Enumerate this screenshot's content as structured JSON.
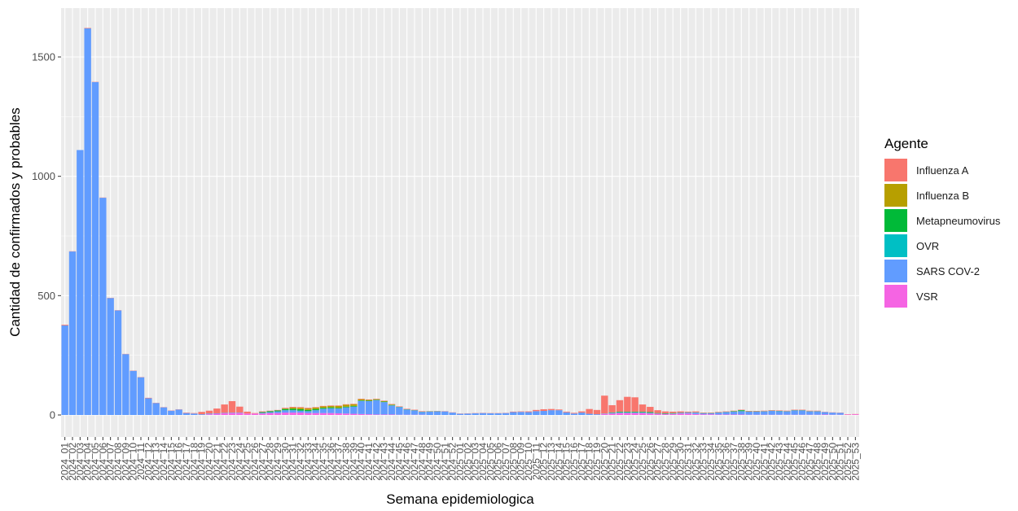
{
  "chart_data": {
    "type": "bar",
    "stacked": true,
    "xlabel": "Semana epidemiologica",
    "ylabel": "Cantidad de confirmados y probables",
    "ylim": [
      0,
      1720
    ],
    "yticks": [
      0,
      500,
      1000,
      1500
    ],
    "legend": {
      "title": "Agente",
      "placement": "right",
      "entries": [
        {
          "name": "Influenza A",
          "color": "#F8766D"
        },
        {
          "name": "Influenza B",
          "color": "#B79F00"
        },
        {
          "name": "Metapneumovirus",
          "color": "#00BA38"
        },
        {
          "name": "OVR",
          "color": "#00BFC4"
        },
        {
          "name": "SARS COV-2",
          "color": "#619CFF"
        },
        {
          "name": "VSR",
          "color": "#F564E3"
        }
      ]
    },
    "background": "#EBEBEB",
    "grid": true,
    "categories": [
      "2024_01",
      "2024_02",
      "2024_03",
      "2024_04",
      "2024_05",
      "2024_06",
      "2024_07",
      "2024_08",
      "2024_09",
      "2024_10",
      "2024_11",
      "2024_12",
      "2024_13",
      "2024_14",
      "2024_15",
      "2024_16",
      "2024_17",
      "2024_18",
      "2024_19",
      "2024_20",
      "2024_21",
      "2024_22",
      "2024_23",
      "2024_24",
      "2024_25",
      "2024_26",
      "2024_27",
      "2024_28",
      "2024_29",
      "2024_30",
      "2024_31",
      "2024_32",
      "2024_33",
      "2024_34",
      "2024_35",
      "2024_36",
      "2024_37",
      "2024_38",
      "2024_39",
      "2024_40",
      "2024_41",
      "2024_42",
      "2024_43",
      "2024_44",
      "2024_45",
      "2024_46",
      "2024_47",
      "2024_48",
      "2024_49",
      "2024_50",
      "2024_51",
      "2024_52",
      "2025_01",
      "2025_02",
      "2025_03",
      "2025_04",
      "2025_05",
      "2025_06",
      "2025_07",
      "2025_08",
      "2025_09",
      "2025_10",
      "2025_11",
      "2025_12",
      "2025_13",
      "2025_14",
      "2025_15",
      "2025_16",
      "2025_17",
      "2025_18",
      "2025_19",
      "2025_20",
      "2025_21",
      "2025_22",
      "2025_23",
      "2025_24",
      "2025_25",
      "2025_26",
      "2025_27",
      "2025_28",
      "2025_29",
      "2025_30",
      "2025_31",
      "2025_32",
      "2025_33",
      "2025_34",
      "2025_35",
      "2025_36",
      "2025_37",
      "2025_38",
      "2025_39",
      "2025_40",
      "2025_41",
      "2025_42",
      "2025_43",
      "2025_44",
      "2025_45",
      "2025_46",
      "2025_47",
      "2025_48",
      "2025_49",
      "2025_50",
      "2025_51",
      "2025_52",
      "2025_53"
    ],
    "series": [
      {
        "name": "Influenza A",
        "values": [
          3,
          1,
          0,
          2,
          1,
          1,
          1,
          1,
          1,
          1,
          1,
          2,
          1,
          1,
          1,
          1,
          2,
          2,
          10,
          12,
          20,
          35,
          48,
          25,
          8,
          2,
          3,
          2,
          2,
          3,
          3,
          3,
          3,
          2,
          2,
          2,
          2,
          2,
          2,
          2,
          2,
          2,
          2,
          2,
          2,
          2,
          2,
          2,
          1,
          1,
          1,
          1,
          1,
          1,
          1,
          1,
          1,
          1,
          1,
          2,
          2,
          3,
          5,
          7,
          5,
          3,
          3,
          3,
          5,
          20,
          18,
          75,
          30,
          48,
          62,
          60,
          30,
          22,
          12,
          8,
          6,
          5,
          3,
          4,
          2,
          2,
          2,
          2,
          2,
          2,
          2,
          2,
          2,
          2,
          2,
          2,
          2,
          2,
          2,
          2,
          1,
          1,
          1,
          1,
          1
        ]
      },
      {
        "name": "Influenza B",
        "values": [
          0,
          0,
          0,
          0,
          0,
          0,
          0,
          0,
          0,
          0,
          0,
          0,
          0,
          0,
          0,
          0,
          0,
          0,
          0,
          0,
          0,
          0,
          0,
          0,
          0,
          0,
          0,
          0,
          0,
          2,
          5,
          6,
          6,
          6,
          6,
          6,
          8,
          8,
          7,
          5,
          3,
          2,
          2,
          2,
          0,
          0,
          0,
          0,
          0,
          0,
          0,
          0,
          0,
          0,
          0,
          0,
          0,
          0,
          0,
          0,
          0,
          0,
          0,
          0,
          0,
          0,
          0,
          0,
          0,
          0,
          0,
          0,
          0,
          0,
          0,
          0,
          0,
          0,
          0,
          0,
          0,
          0,
          0,
          0,
          0,
          0,
          0,
          0,
          0,
          0,
          0,
          0,
          0,
          0,
          0,
          0,
          0,
          0,
          0,
          0,
          0,
          0,
          0,
          0,
          0
        ]
      },
      {
        "name": "Metapneumovirus",
        "values": [
          0,
          0,
          0,
          0,
          0,
          0,
          0,
          0,
          0,
          0,
          0,
          0,
          0,
          0,
          0,
          0,
          0,
          0,
          0,
          0,
          0,
          0,
          0,
          0,
          0,
          0,
          3,
          4,
          4,
          5,
          6,
          6,
          5,
          5,
          4,
          4,
          3,
          3,
          3,
          2,
          2,
          2,
          2,
          2,
          1,
          1,
          1,
          1,
          1,
          1,
          0,
          0,
          0,
          0,
          0,
          0,
          0,
          0,
          0,
          0,
          0,
          0,
          0,
          0,
          0,
          0,
          0,
          0,
          0,
          0,
          0,
          0,
          2,
          3,
          3,
          3,
          3,
          3,
          2,
          2,
          2,
          1,
          1,
          1,
          1,
          1,
          1,
          1,
          2,
          4,
          1,
          1,
          1,
          1,
          1,
          1,
          1,
          1,
          1,
          1,
          0,
          0,
          0,
          0,
          0
        ]
      },
      {
        "name": "OVR",
        "values": [
          0,
          0,
          0,
          0,
          0,
          0,
          0,
          0,
          0,
          0,
          0,
          0,
          0,
          0,
          0,
          0,
          0,
          0,
          0,
          0,
          0,
          0,
          0,
          0,
          0,
          0,
          0,
          0,
          0,
          0,
          0,
          0,
          0,
          0,
          0,
          0,
          0,
          0,
          0,
          0,
          0,
          0,
          0,
          0,
          0,
          0,
          0,
          0,
          0,
          0,
          0,
          0,
          0,
          0,
          0,
          0,
          0,
          0,
          0,
          0,
          0,
          0,
          0,
          0,
          0,
          0,
          0,
          0,
          0,
          0,
          0,
          0,
          0,
          0,
          0,
          0,
          0,
          0,
          0,
          0,
          0,
          0,
          0,
          0,
          0,
          0,
          0,
          0,
          0,
          0,
          0,
          0,
          0,
          0,
          0,
          0,
          0,
          0,
          0,
          0,
          0,
          0,
          0,
          0,
          0
        ]
      },
      {
        "name": "SARS COV-2",
        "values": [
          375,
          685,
          1110,
          1620,
          1395,
          910,
          490,
          438,
          255,
          185,
          158,
          70,
          50,
          32,
          18,
          23,
          8,
          6,
          3,
          3,
          2,
          2,
          2,
          2,
          0,
          0,
          3,
          4,
          7,
          10,
          10,
          8,
          8,
          12,
          18,
          20,
          20,
          26,
          30,
          55,
          55,
          60,
          52,
          38,
          32,
          22,
          18,
          12,
          14,
          15,
          15,
          10,
          5,
          6,
          7,
          8,
          7,
          7,
          8,
          12,
          13,
          12,
          16,
          17,
          20,
          20,
          11,
          6,
          10,
          5,
          3,
          2,
          3,
          3,
          3,
          3,
          3,
          3,
          1,
          1,
          2,
          3,
          4,
          6,
          4,
          4,
          8,
          10,
          12,
          14,
          13,
          13,
          14,
          16,
          15,
          14,
          18,
          18,
          14,
          14,
          10,
          9,
          8,
          0,
          0
        ]
      },
      {
        "name": "VSR",
        "values": [
          0,
          0,
          0,
          0,
          0,
          0,
          0,
          0,
          0,
          0,
          0,
          0,
          0,
          0,
          0,
          0,
          0,
          0,
          0,
          3,
          5,
          7,
          8,
          8,
          6,
          6,
          6,
          8,
          8,
          10,
          10,
          10,
          8,
          8,
          8,
          8,
          7,
          6,
          5,
          4,
          3,
          2,
          2,
          2,
          1,
          1,
          1,
          1,
          0,
          0,
          0,
          0,
          0,
          0,
          0,
          0,
          0,
          0,
          0,
          0,
          0,
          0,
          0,
          0,
          0,
          0,
          0,
          0,
          0,
          0,
          0,
          4,
          6,
          8,
          8,
          8,
          8,
          6,
          5,
          4,
          4,
          6,
          6,
          4,
          3,
          3,
          2,
          2,
          2,
          2,
          1,
          1,
          1,
          1,
          1,
          1,
          1,
          1,
          1,
          1,
          2,
          1,
          1,
          2,
          3
        ]
      }
    ]
  }
}
